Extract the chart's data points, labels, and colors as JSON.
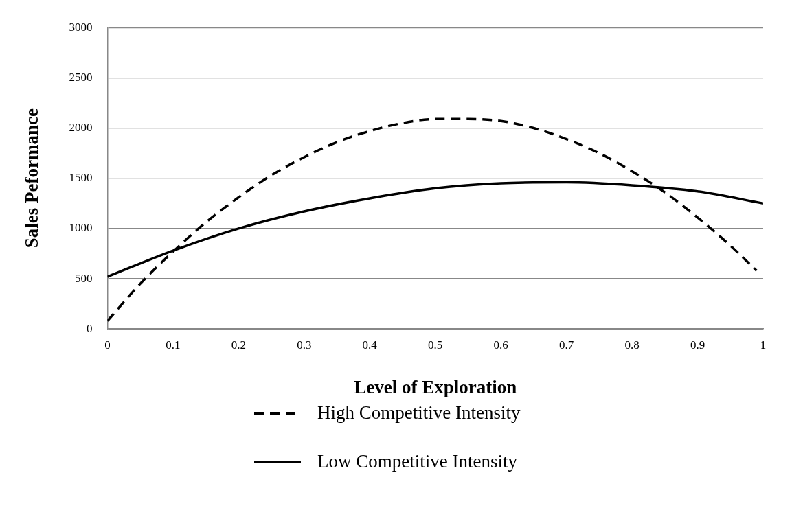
{
  "chart_data": {
    "type": "line",
    "xlabel": "Level of Exploration",
    "ylabel": "Sales Peformance",
    "xlim": [
      0,
      1
    ],
    "xticks": [
      0,
      0.1,
      0.2,
      0.3,
      0.4,
      0.5,
      0.6,
      0.7,
      0.8,
      0.9,
      1
    ],
    "ylim": [
      0,
      3000
    ],
    "yticks": [
      0,
      500,
      1000,
      1500,
      2000,
      2500,
      3000
    ],
    "grid": "y",
    "legend": "bottom",
    "marker": "none",
    "series": [
      {
        "name": "High Competitive Intensity",
        "color": "#000000",
        "line_style": "dashed",
        "x": [
          0,
          0.05,
          0.1,
          0.15,
          0.2,
          0.25,
          0.3,
          0.35,
          0.4,
          0.45,
          0.5,
          0.55,
          0.6,
          0.65,
          0.7,
          0.75,
          0.8,
          0.85,
          0.9,
          0.95,
          0.99
        ],
        "values": [
          80,
          450,
          770,
          1060,
          1310,
          1530,
          1710,
          1860,
          1970,
          2050,
          2090,
          2090,
          2070,
          2000,
          1890,
          1750,
          1570,
          1360,
          1110,
          830,
          580
        ]
      },
      {
        "name": "Low Competitive Intensity",
        "color": "#000000",
        "line_style": "solid",
        "x": [
          0,
          0.1,
          0.2,
          0.3,
          0.4,
          0.5,
          0.6,
          0.7,
          0.8,
          0.9,
          1
        ],
        "values": [
          520,
          780,
          1000,
          1170,
          1300,
          1400,
          1450,
          1460,
          1430,
          1370,
          1250
        ]
      }
    ]
  }
}
